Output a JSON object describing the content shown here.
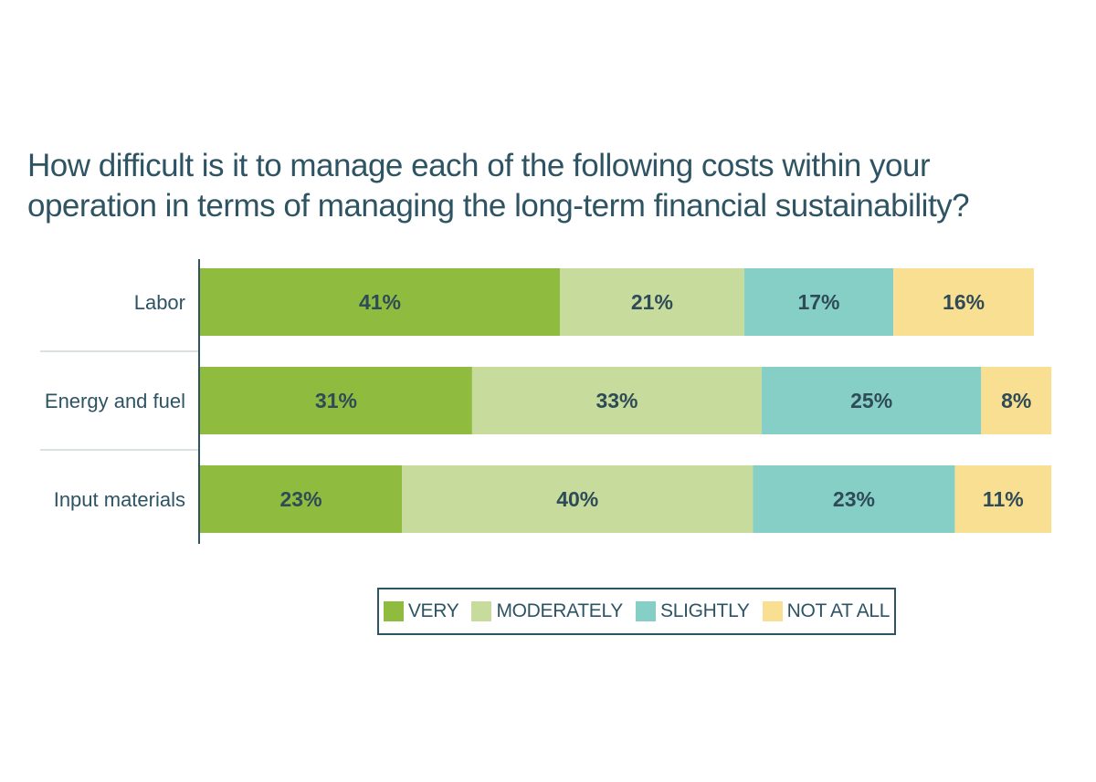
{
  "chart_data": {
    "type": "bar",
    "orientation": "horizontal",
    "stacked": true,
    "title": "How difficult is it to manage each of the following costs within your operation in terms of managing the long-term financial sustainability?",
    "title_lines": [
      "How difficult is it to manage each of the following costs within your",
      "operation in terms of managing the long-term financial sustainability?"
    ],
    "categories": [
      "Labor",
      "Energy and fuel",
      "Input materials"
    ],
    "series": [
      {
        "name": "VERY",
        "color": "#8fbb3f",
        "values": [
          41,
          31,
          23
        ],
        "labels": [
          "41%",
          "31%",
          "23%"
        ]
      },
      {
        "name": "MODERATELY",
        "color": "#c7db9c",
        "values": [
          21,
          33,
          40
        ],
        "labels": [
          "21%",
          "33%",
          "40%"
        ]
      },
      {
        "name": "SLIGHTLY",
        "color": "#86cfc6",
        "values": [
          17,
          25,
          23
        ],
        "labels": [
          "17%",
          "25%",
          "23%"
        ]
      },
      {
        "name": "NOT AT ALL",
        "color": "#f8df92",
        "values": [
          16,
          8,
          11
        ],
        "labels": [
          "16%",
          "8%",
          "11%"
        ]
      }
    ],
    "xlim": [
      0,
      100
    ],
    "grid": false,
    "legend_position": "bottom"
  }
}
